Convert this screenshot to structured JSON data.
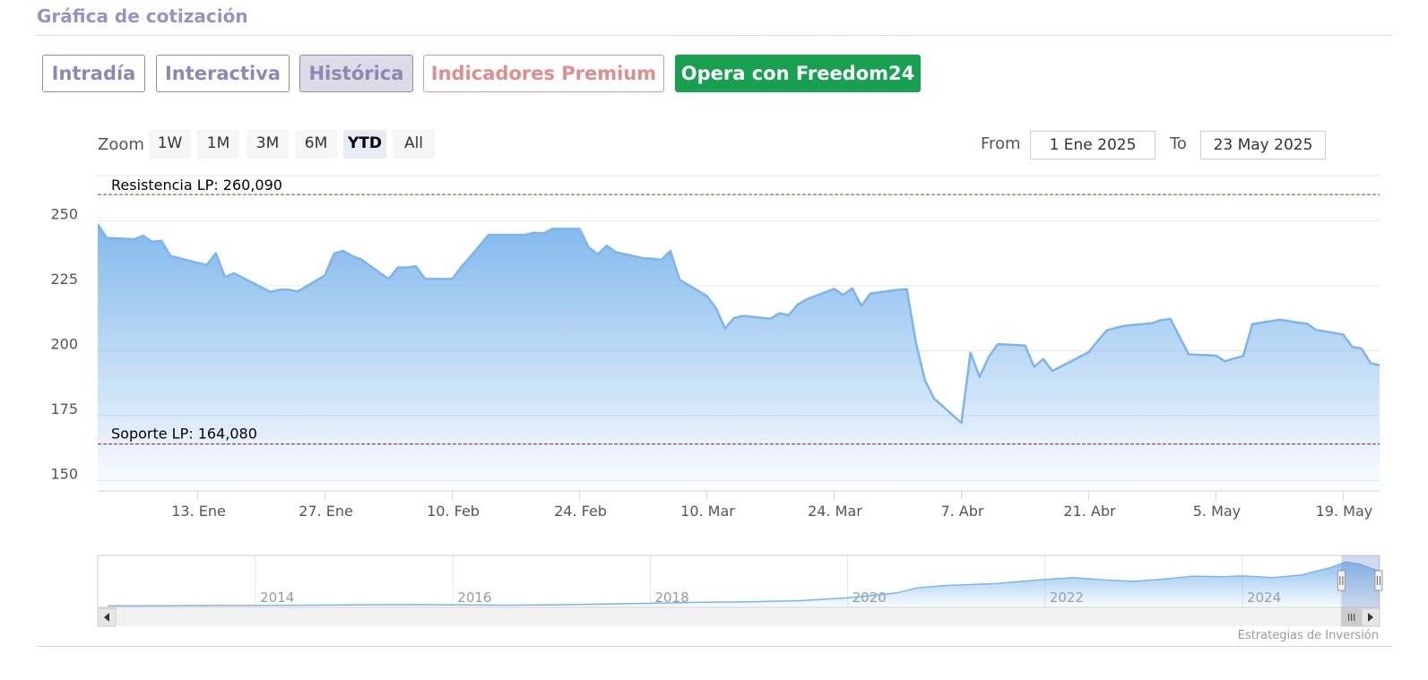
{
  "section_title": "Gráfica de cotización",
  "tabs": [
    {
      "label": "Intradía",
      "style": "normal"
    },
    {
      "label": "Interactiva",
      "style": "normal"
    },
    {
      "label": "Histórica",
      "style": "active"
    },
    {
      "label": "Indicadores Premium",
      "style": "premium"
    },
    {
      "label": "Opera con Freedom24",
      "style": "cta"
    }
  ],
  "range_selector": {
    "zoom_label": "Zoom",
    "buttons": [
      "1W",
      "1M",
      "3M",
      "6M",
      "YTD",
      "All"
    ],
    "selected": "YTD",
    "from_label": "From",
    "from_value": "1 Ene 2025",
    "to_label": "To",
    "to_value": "23 May 2025"
  },
  "credit": "Estrategias de Inversión",
  "colors": {
    "series": "#7cb5ec",
    "resistance": "#1a7f1a",
    "support": "#8b1a3a",
    "tab_text": "#8f86b5",
    "premium": "#e08d8d",
    "cta": "#17a04f"
  },
  "chart_data": [
    {
      "type": "area",
      "ylim": [
        146,
        266
      ],
      "yticks": [
        150,
        175,
        200,
        225,
        250
      ],
      "x_range": [
        "2025-01-02",
        "2025-05-23"
      ],
      "xticks": [
        {
          "date": "2025-01-13",
          "label": "13. Ene"
        },
        {
          "date": "2025-01-27",
          "label": "27. Ene"
        },
        {
          "date": "2025-02-10",
          "label": "10. Feb"
        },
        {
          "date": "2025-02-24",
          "label": "24. Feb"
        },
        {
          "date": "2025-03-10",
          "label": "10. Mar"
        },
        {
          "date": "2025-03-24",
          "label": "24. Mar"
        },
        {
          "date": "2025-04-07",
          "label": "7. Abr"
        },
        {
          "date": "2025-04-21",
          "label": "21. Abr"
        },
        {
          "date": "2025-05-05",
          "label": "5. May"
        },
        {
          "date": "2025-05-19",
          "label": "19. May"
        }
      ],
      "plot_lines": [
        {
          "label": "Resistencia LP: 260,090",
          "value": 260.09
        },
        {
          "label": "Soporte LP: 164,080",
          "value": 164.08
        }
      ],
      "grid": true,
      "legend": "none",
      "series": [
        {
          "points": [
            [
              "2025-01-02",
              248.7
            ],
            [
              "2025-01-03",
              243.4
            ],
            [
              "2025-01-06",
              242.9
            ],
            [
              "2025-01-07",
              244.2
            ],
            [
              "2025-01-08",
              241.9
            ],
            [
              "2025-01-09",
              242.3
            ],
            [
              "2025-01-10",
              236.5
            ],
            [
              "2025-01-13",
              233.8
            ],
            [
              "2025-01-14",
              233.0
            ],
            [
              "2025-01-15",
              237.5
            ],
            [
              "2025-01-16",
              228.3
            ],
            [
              "2025-01-17",
              229.8
            ],
            [
              "2025-01-21",
              222.6
            ],
            [
              "2025-01-22",
              223.4
            ],
            [
              "2025-01-23",
              223.5
            ],
            [
              "2025-01-24",
              222.8
            ],
            [
              "2025-01-27",
              229.0
            ],
            [
              "2025-01-28",
              237.4
            ],
            [
              "2025-01-29",
              238.4
            ],
            [
              "2025-01-30",
              236.4
            ],
            [
              "2025-01-31",
              235.1
            ],
            [
              "2025-02-03",
              227.6
            ],
            [
              "2025-02-04",
              232.0
            ],
            [
              "2025-02-05",
              232.0
            ],
            [
              "2025-02-06",
              232.5
            ],
            [
              "2025-02-07",
              227.6
            ],
            [
              "2025-02-10",
              227.6
            ],
            [
              "2025-02-11",
              232.3
            ],
            [
              "2025-02-12",
              236.2
            ],
            [
              "2025-02-13",
              240.4
            ],
            [
              "2025-02-14",
              244.6
            ],
            [
              "2025-02-18",
              244.6
            ],
            [
              "2025-02-19",
              245.4
            ],
            [
              "2025-02-20",
              245.1
            ],
            [
              "2025-02-21",
              246.9
            ],
            [
              "2025-02-24",
              246.9
            ],
            [
              "2025-02-25",
              239.8
            ],
            [
              "2025-02-26",
              237.1
            ],
            [
              "2025-02-27",
              240.4
            ],
            [
              "2025-02-28",
              237.9
            ],
            [
              "2025-03-03",
              235.6
            ],
            [
              "2025-03-04",
              235.4
            ],
            [
              "2025-03-05",
              235.0
            ],
            [
              "2025-03-06",
              238.4
            ],
            [
              "2025-03-07",
              227.3
            ],
            [
              "2025-03-10",
              221.0
            ],
            [
              "2025-03-11",
              216.4
            ],
            [
              "2025-03-12",
              208.6
            ],
            [
              "2025-03-13",
              212.5
            ],
            [
              "2025-03-14",
              213.4
            ],
            [
              "2025-03-17",
              212.3
            ],
            [
              "2025-03-18",
              214.4
            ],
            [
              "2025-03-19",
              213.6
            ],
            [
              "2025-03-20",
              217.8
            ],
            [
              "2025-03-21",
              219.8
            ],
            [
              "2025-03-24",
              223.8
            ],
            [
              "2025-03-25",
              221.4
            ],
            [
              "2025-03-26",
              224.0
            ],
            [
              "2025-03-27",
              217.2
            ],
            [
              "2025-03-28",
              222.0
            ],
            [
              "2025-03-31",
              223.4
            ],
            [
              "2025-04-01",
              223.7
            ],
            [
              "2025-04-02",
              203.0
            ],
            [
              "2025-04-03",
              188.5
            ],
            [
              "2025-04-04",
              181.6
            ],
            [
              "2025-04-07",
              172.2
            ],
            [
              "2025-04-08",
              199.2
            ],
            [
              "2025-04-09",
              189.9
            ],
            [
              "2025-04-10",
              197.5
            ],
            [
              "2025-04-11",
              202.5
            ],
            [
              "2025-04-14",
              202.0
            ],
            [
              "2025-04-15",
              193.8
            ],
            [
              "2025-04-16",
              196.8
            ],
            [
              "2025-04-17",
              192.2
            ],
            [
              "2025-04-21",
              199.4
            ],
            [
              "2025-04-22",
              203.8
            ],
            [
              "2025-04-23",
              207.8
            ],
            [
              "2025-04-24",
              208.8
            ],
            [
              "2025-04-25",
              209.6
            ],
            [
              "2025-04-28",
              210.6
            ],
            [
              "2025-04-29",
              211.8
            ],
            [
              "2025-04-30",
              212.2
            ],
            [
              "2025-05-01",
              205.3
            ],
            [
              "2025-05-02",
              198.6
            ],
            [
              "2025-05-05",
              198.1
            ],
            [
              "2025-05-06",
              195.9
            ],
            [
              "2025-05-07",
              197.0
            ],
            [
              "2025-05-08",
              197.9
            ],
            [
              "2025-05-09",
              210.2
            ],
            [
              "2025-05-12",
              211.9
            ],
            [
              "2025-05-13",
              211.4
            ],
            [
              "2025-05-14",
              210.8
            ],
            [
              "2025-05-15",
              210.4
            ],
            [
              "2025-05-16",
              208.0
            ],
            [
              "2025-05-19",
              206.2
            ],
            [
              "2025-05-20",
              201.4
            ],
            [
              "2025-05-21",
              200.9
            ],
            [
              "2025-05-22",
              195.2
            ],
            [
              "2025-05-23",
              194.4
            ]
          ]
        }
      ]
    },
    {
      "type": "area",
      "role": "navigator",
      "x_range": [
        2012.4,
        2025.39
      ],
      "year_labels": [
        "2014",
        "2016",
        "2018",
        "2020",
        "2022",
        "2024"
      ],
      "selected_range": [
        "2025-01-02",
        "2025-05-23"
      ],
      "ylim": [
        0,
        260
      ],
      "series": [
        {
          "points": [
            [
              2012.5,
              8
            ],
            [
              2013.0,
              9
            ],
            [
              2013.5,
              10
            ],
            [
              2014.0,
              11
            ],
            [
              2014.5,
              12
            ],
            [
              2015.0,
              14
            ],
            [
              2015.5,
              15
            ],
            [
              2016.0,
              14
            ],
            [
              2016.5,
              12
            ],
            [
              2017.0,
              14
            ],
            [
              2017.5,
              18
            ],
            [
              2018.0,
              22
            ],
            [
              2018.5,
              28
            ],
            [
              2019.0,
              30
            ],
            [
              2019.5,
              36
            ],
            [
              2020.0,
              52
            ],
            [
              2020.5,
              78
            ],
            [
              2020.7,
              105
            ],
            [
              2021.0,
              118
            ],
            [
              2021.5,
              128
            ],
            [
              2021.8,
              142
            ],
            [
              2022.0,
              150
            ],
            [
              2022.3,
              160
            ],
            [
              2022.6,
              148
            ],
            [
              2022.9,
              140
            ],
            [
              2023.2,
              152
            ],
            [
              2023.5,
              168
            ],
            [
              2023.8,
              165
            ],
            [
              2024.0,
              170
            ],
            [
              2024.3,
              160
            ],
            [
              2024.6,
              175
            ],
            [
              2024.9,
              215
            ],
            [
              2025.05,
              245
            ],
            [
              2025.2,
              230
            ],
            [
              2025.3,
              210
            ],
            [
              2025.39,
              195
            ]
          ]
        }
      ]
    }
  ]
}
